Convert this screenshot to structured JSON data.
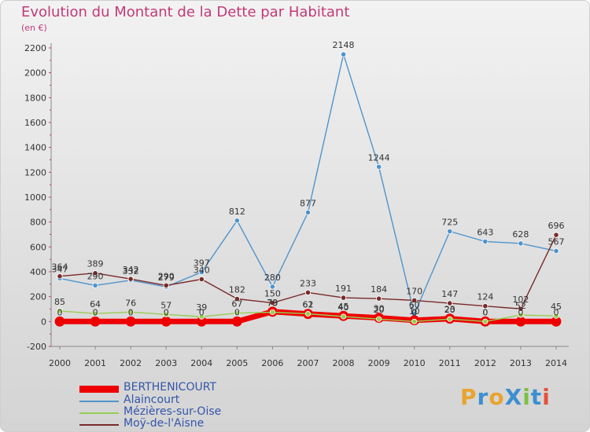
{
  "header": {
    "title": "Evolution du Montant de la Dette par Habitant",
    "unit": "(en €)"
  },
  "logo": {
    "text": "ProXiti",
    "colors": [
      "#e8a430",
      "#3b8fd1",
      "#e8a430",
      "#3b8fd1",
      "#7cc142",
      "#3b8fd1",
      "#e8503a"
    ]
  },
  "chart_data": {
    "type": "line",
    "title": "Evolution du Montant de la Dette par Habitant",
    "ylabel": "(en €)",
    "xlabel": "",
    "x": [
      "2000",
      "2001",
      "2002",
      "2003",
      "2004",
      "2005",
      "2006",
      "2007",
      "2008",
      "2009",
      "2010",
      "2011",
      "2012",
      "2013",
      "2014"
    ],
    "ylim": [
      -200,
      2200
    ],
    "yticks": [
      -200,
      0,
      200,
      400,
      600,
      800,
      1000,
      1200,
      1400,
      1600,
      1800,
      2000,
      2200
    ],
    "grid": false,
    "legend_position": "bottom-left",
    "series": [
      {
        "name": "BERTHENICOURT",
        "color": "#ee0000",
        "values": [
          0,
          0,
          0,
          0,
          0,
          0,
          79,
          61,
          45,
          30,
          10,
          23,
          0,
          0,
          0
        ],
        "labels": [
          "0",
          "0",
          "0",
          "0",
          "0",
          "0",
          "79",
          "61",
          "45",
          "30",
          "10",
          "23",
          "0",
          "0",
          "0"
        ]
      },
      {
        "name": "Alaincourt",
        "color": "#4f94cc",
        "values": [
          347,
          290,
          332,
          279,
          397,
          812,
          280,
          877,
          2148,
          1244,
          60,
          725,
          643,
          628,
          567
        ],
        "labels": [
          "347",
          "290",
          "332",
          "279",
          "397",
          "812",
          "280",
          "877",
          "2148",
          "1244",
          "60",
          "725",
          "643",
          "628",
          "567"
        ]
      },
      {
        "name": "Mézières-sur-Oise",
        "color": "#99cc55",
        "values": [
          85,
          64,
          76,
          57,
          39,
          67,
          75,
          62,
          40,
          20,
          0,
          20,
          0,
          52,
          45
        ],
        "labels": [
          "85",
          "64",
          "76",
          "57",
          "39",
          "67",
          "75",
          "62",
          "40",
          "20",
          "0",
          "20",
          "0",
          "52",
          "45"
        ]
      },
      {
        "name": "Moÿ-de-l'Aisne",
        "color": "#7a2a2a",
        "values": [
          364,
          389,
          342,
          290,
          340,
          182,
          150,
          233,
          191,
          184,
          170,
          147,
          124,
          102,
          696
        ],
        "labels": [
          "364",
          "389",
          "342",
          "290",
          "340",
          "182",
          "150",
          "233",
          "191",
          "184",
          "170",
          "147",
          "124",
          "102",
          "696"
        ]
      }
    ]
  }
}
